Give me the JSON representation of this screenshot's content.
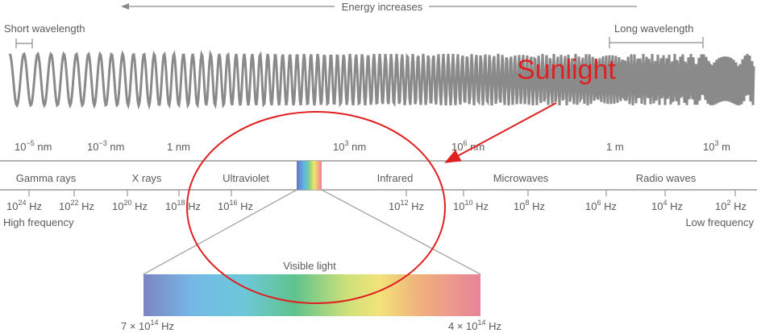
{
  "energy_label": "Energy increases",
  "short_wavelength": "Short wavelength",
  "long_wavelength": "Long wavelength",
  "sunlight": "Sunlight",
  "wavelength_ticks": [
    {
      "base": "10",
      "exp": "−5",
      "unit": " nm"
    },
    {
      "base": "10",
      "exp": "−3",
      "unit": " nm"
    },
    {
      "base": "1 nm",
      "exp": "",
      "unit": ""
    },
    {
      "base": "10",
      "exp": "3",
      "unit": " nm"
    },
    {
      "base": "10",
      "exp": "6",
      "unit": " nm"
    },
    {
      "base": "1 m",
      "exp": "",
      "unit": ""
    },
    {
      "base": "10",
      "exp": "3",
      "unit": " m"
    }
  ],
  "bands": [
    "Gamma rays",
    "X rays",
    "Ultraviolet",
    "Infrared",
    "Microwaves",
    "Radio waves"
  ],
  "frequency_ticks": [
    {
      "base": "10",
      "exp": "24",
      "unit": " Hz"
    },
    {
      "base": "10",
      "exp": "22",
      "unit": " Hz"
    },
    {
      "base": "10",
      "exp": "20",
      "unit": " Hz"
    },
    {
      "base": "10",
      "exp": "18",
      "unit": " Hz"
    },
    {
      "base": "10",
      "exp": "16",
      "unit": " Hz"
    },
    {
      "base": "10",
      "exp": "12",
      "unit": " Hz"
    },
    {
      "base": "10",
      "exp": "10",
      "unit": " Hz"
    },
    {
      "base": "10",
      "exp": "8",
      "unit": " Hz"
    },
    {
      "base": "10",
      "exp": "6",
      "unit": " Hz"
    },
    {
      "base": "10",
      "exp": "4",
      "unit": " Hz"
    },
    {
      "base": "10",
      "exp": "2",
      "unit": " Hz"
    }
  ],
  "high_frequency": "High frequency",
  "low_frequency": "Low frequency",
  "visible_light": "Visible light",
  "visible_left": {
    "base": "7 × 10",
    "exp": "14",
    "unit": " Hz"
  },
  "visible_right": {
    "base": "4 × 10",
    "exp": "14",
    "unit": " Hz"
  },
  "colors": {
    "annotation_red": "#e02020",
    "wave": "#8a8a8a",
    "text": "#5a5a5a"
  }
}
